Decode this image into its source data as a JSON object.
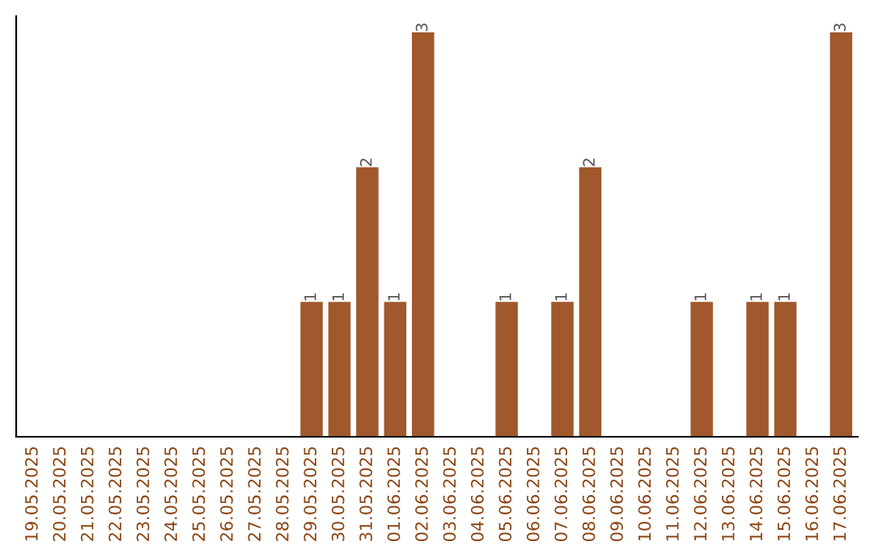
{
  "chart_data": {
    "type": "bar",
    "categories": [
      "19.05.2025",
      "20.05.2025",
      "21.05.2025",
      "22.05.2025",
      "23.05.2025",
      "24.05.2025",
      "25.05.2025",
      "26.05.2025",
      "27.05.2025",
      "28.05.2025",
      "29.05.2025",
      "30.05.2025",
      "31.05.2025",
      "01.06.2025",
      "02.06.2025",
      "03.06.2025",
      "04.06.2025",
      "05.06.2025",
      "06.06.2025",
      "07.06.2025",
      "08.06.2025",
      "09.06.2025",
      "10.06.2025",
      "11.06.2025",
      "12.06.2025",
      "13.06.2025",
      "14.06.2025",
      "15.06.2025",
      "16.06.2025",
      "17.06.2025"
    ],
    "values": [
      0,
      0,
      0,
      0,
      0,
      0,
      0,
      0,
      0,
      0,
      1,
      1,
      2,
      1,
      3,
      0,
      0,
      1,
      0,
      1,
      2,
      0,
      0,
      0,
      1,
      0,
      1,
      1,
      0,
      3
    ],
    "value_labels": [
      null,
      null,
      null,
      null,
      null,
      null,
      null,
      null,
      null,
      null,
      "1",
      "1",
      "2",
      "1",
      "3",
      null,
      null,
      "1",
      null,
      "1",
      "2",
      null,
      null,
      null,
      "1",
      null,
      "1",
      "1",
      null,
      "3"
    ],
    "color": "#a0582c",
    "tick_labels": "x",
    "grid": false,
    "legend": false
  }
}
